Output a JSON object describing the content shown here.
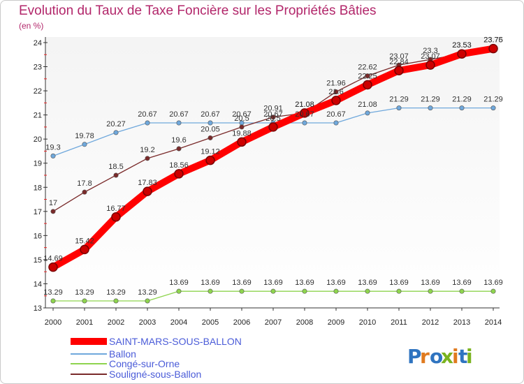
{
  "chart_data": {
    "type": "line",
    "title": "Evolution du Taux de Taxe Foncière sur les Propriétés Bâties",
    "subtitle": "(en %)",
    "x": [
      "2000",
      "2001",
      "2002",
      "2003",
      "2004",
      "2005",
      "2006",
      "2007",
      "2008",
      "2009",
      "2010",
      "2011",
      "2012",
      "2013",
      "2014"
    ],
    "ylim": [
      13,
      24
    ],
    "yticks": [
      13,
      14,
      15,
      16,
      17,
      18,
      19,
      20,
      21,
      22,
      23,
      24
    ],
    "grid": false,
    "legend_position": "bottom-left",
    "series": [
      {
        "name": "SAINT-MARS-SOUS-BALLON",
        "color": "#ff0000",
        "values": [
          14.69,
          15.42,
          16.77,
          17.83,
          18.56,
          19.12,
          19.88,
          20.5,
          21.08,
          21.6,
          22.25,
          22.84,
          23.07,
          23.53,
          23.75
        ],
        "labels": [
          "14.69",
          "15.42",
          "16.77",
          "17.83",
          "18.56",
          "19.12",
          "19.88",
          "20.5",
          "21.08",
          "21.6",
          "22.25",
          "22.84",
          "23.07",
          "23.53",
          "23.75"
        ]
      },
      {
        "name": "Ballon",
        "color": "#6fa8dc",
        "values": [
          19.3,
          19.78,
          20.27,
          20.67,
          20.67,
          20.67,
          20.67,
          20.67,
          20.67,
          20.67,
          21.08,
          21.29,
          21.29,
          21.29,
          21.29
        ],
        "labels": [
          "19.3",
          "19.78",
          "20.27",
          "20.67",
          "20.67",
          "20.67",
          "20.67",
          "20.67",
          "20.67",
          "20.67",
          "21.08",
          "21.29",
          "21.29",
          "21.29",
          "21.29"
        ]
      },
      {
        "name": "Congé-sur-Orne",
        "color": "#8ed44e",
        "values": [
          13.29,
          13.29,
          13.29,
          13.29,
          13.69,
          13.69,
          13.69,
          13.69,
          13.69,
          13.69,
          13.69,
          13.69,
          13.69,
          13.69,
          13.69
        ],
        "labels": [
          "13.29",
          "13.29",
          "13.29",
          "13.29",
          "13.69",
          "13.69",
          "13.69",
          "13.69",
          "13.69",
          "13.69",
          "13.69",
          "13.69",
          "13.69",
          "13.69",
          "13.69"
        ]
      },
      {
        "name": "Souligné-sous-Ballon",
        "color": "#7a2a2a",
        "values": [
          17,
          17.8,
          18.5,
          19.2,
          19.6,
          20.05,
          20.5,
          20.91,
          21.08,
          21.96,
          22.62,
          23.07,
          23.3,
          23.53,
          23.76
        ],
        "labels": [
          "17",
          "17.8",
          "18.5",
          "19.2",
          "19.6",
          "20.05",
          "20.5",
          "20.91",
          "21.08",
          "21.96",
          "22.62",
          "23.07",
          "23.3",
          "23.53",
          "23.76"
        ]
      }
    ]
  },
  "logo": {
    "text": "Proxiti"
  }
}
